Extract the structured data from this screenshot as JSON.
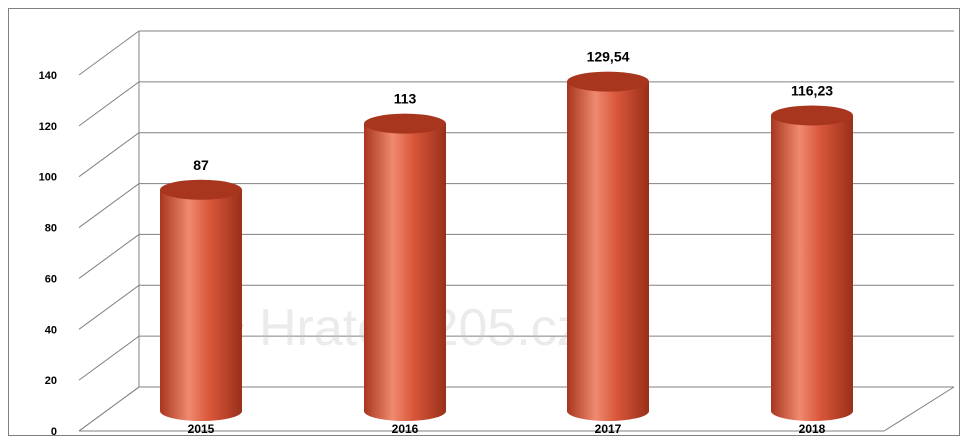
{
  "chart_data": {
    "type": "bar",
    "style": "3d-cylinder",
    "categories": [
      "2015",
      "2016",
      "2017",
      "2018"
    ],
    "values": [
      87,
      113,
      129.54,
      116.23
    ],
    "data_labels": [
      "87",
      "113",
      "129,54",
      "116,23"
    ],
    "yticks": [
      "0",
      "20",
      "40",
      "60",
      "80",
      "100",
      "120",
      "140"
    ],
    "ylim": [
      0,
      140
    ],
    "grid": true,
    "legend": "none",
    "bar_color": "#d9573b",
    "bar_shade": "#a8361f",
    "bar_highlight": "#ef8a6f",
    "watermark": "Hrateo 205.cz"
  }
}
